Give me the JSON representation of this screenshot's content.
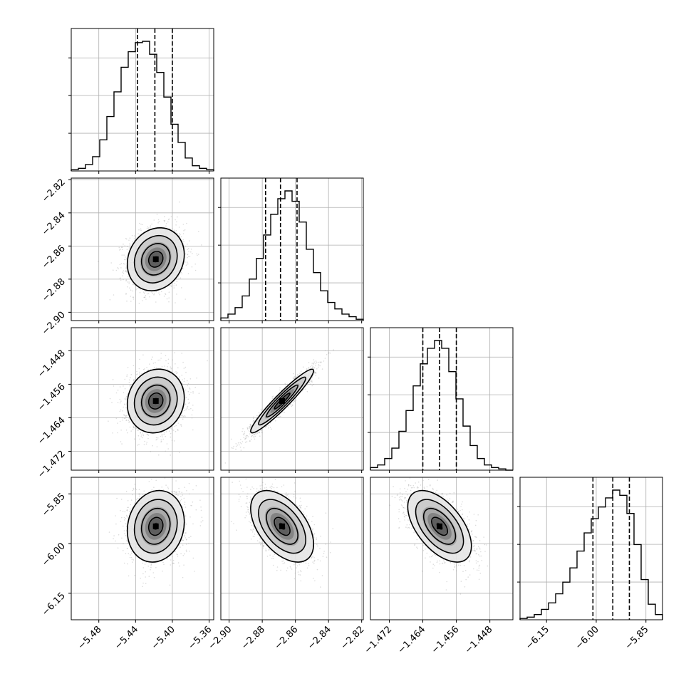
{
  "chart_data": {
    "type": "corner",
    "parameters": 4,
    "colors": {
      "line": "#000000",
      "grid": "#b0b0b0",
      "points": "#9a9a9a"
    },
    "grid": true,
    "params": [
      {
        "range": [
          -5.51,
          -5.355
        ],
        "ticks": [
          -5.48,
          -5.44,
          -5.4,
          -5.36
        ],
        "tick_labels": [
          "−5.48",
          "−5.44",
          "−5.40",
          "−5.36"
        ],
        "quantiles": [
          -5.438,
          -5.419,
          -5.4
        ],
        "mean": -5.418,
        "sd": 0.0155
      },
      {
        "range": [
          -2.905,
          -2.819
        ],
        "ticks": [
          -2.9,
          -2.88,
          -2.86,
          -2.84,
          -2.82
        ],
        "tick_labels": [
          "−2.90",
          "−2.88",
          "−2.86",
          "−2.84",
          "−2.82"
        ],
        "quantiles": [
          -2.878,
          -2.869,
          -2.859
        ],
        "mean": -2.868,
        "sd": 0.0095
      },
      {
        "range": [
          -1.4765,
          -1.4425
        ],
        "ticks": [
          -1.472,
          -1.464,
          -1.456,
          -1.448
        ],
        "tick_labels": [
          "−1.472",
          "−1.464",
          "−1.456",
          "−1.448"
        ],
        "quantiles": [
          -1.464,
          -1.46,
          -1.456
        ],
        "mean": -1.46,
        "sd": 0.0038
      },
      {
        "range": [
          -6.23,
          -5.8
        ],
        "ticks": [
          -6.15,
          -6.0,
          -5.85
        ],
        "tick_labels": [
          "−6.15",
          "−6.00",
          "−5.85"
        ],
        "quantiles": [
          -6.01,
          -5.95,
          -5.9
        ],
        "mean": -5.948,
        "sd": 0.054
      }
    ],
    "hist_heights": [
      [
        0.01,
        0.02,
        0.05,
        0.11,
        0.24,
        0.42,
        0.61,
        0.8,
        0.92,
        0.99,
        1.0,
        0.9,
        0.76,
        0.57,
        0.36,
        0.22,
        0.1,
        0.04,
        0.02,
        0.01
      ],
      [
        0.02,
        0.05,
        0.1,
        0.19,
        0.32,
        0.48,
        0.66,
        0.82,
        0.94,
        1.0,
        0.92,
        0.76,
        0.55,
        0.37,
        0.23,
        0.14,
        0.09,
        0.05,
        0.03,
        0.01
      ],
      [
        0.02,
        0.04,
        0.09,
        0.17,
        0.3,
        0.46,
        0.65,
        0.82,
        0.94,
        1.0,
        0.94,
        0.76,
        0.55,
        0.34,
        0.19,
        0.09,
        0.04,
        0.02,
        0.01,
        0.0
      ],
      [
        0.01,
        0.02,
        0.04,
        0.08,
        0.13,
        0.2,
        0.29,
        0.4,
        0.53,
        0.67,
        0.78,
        0.87,
        0.94,
        1.0,
        0.96,
        0.82,
        0.58,
        0.31,
        0.12,
        0.04
      ]
    ],
    "correlation": [
      [
        1.0,
        0.15,
        0.1,
        0.12
      ],
      [
        0.15,
        1.0,
        0.95,
        -0.5
      ],
      [
        0.1,
        0.95,
        1.0,
        -0.55
      ],
      [
        0.12,
        -0.5,
        -0.55,
        1.0
      ]
    ]
  }
}
